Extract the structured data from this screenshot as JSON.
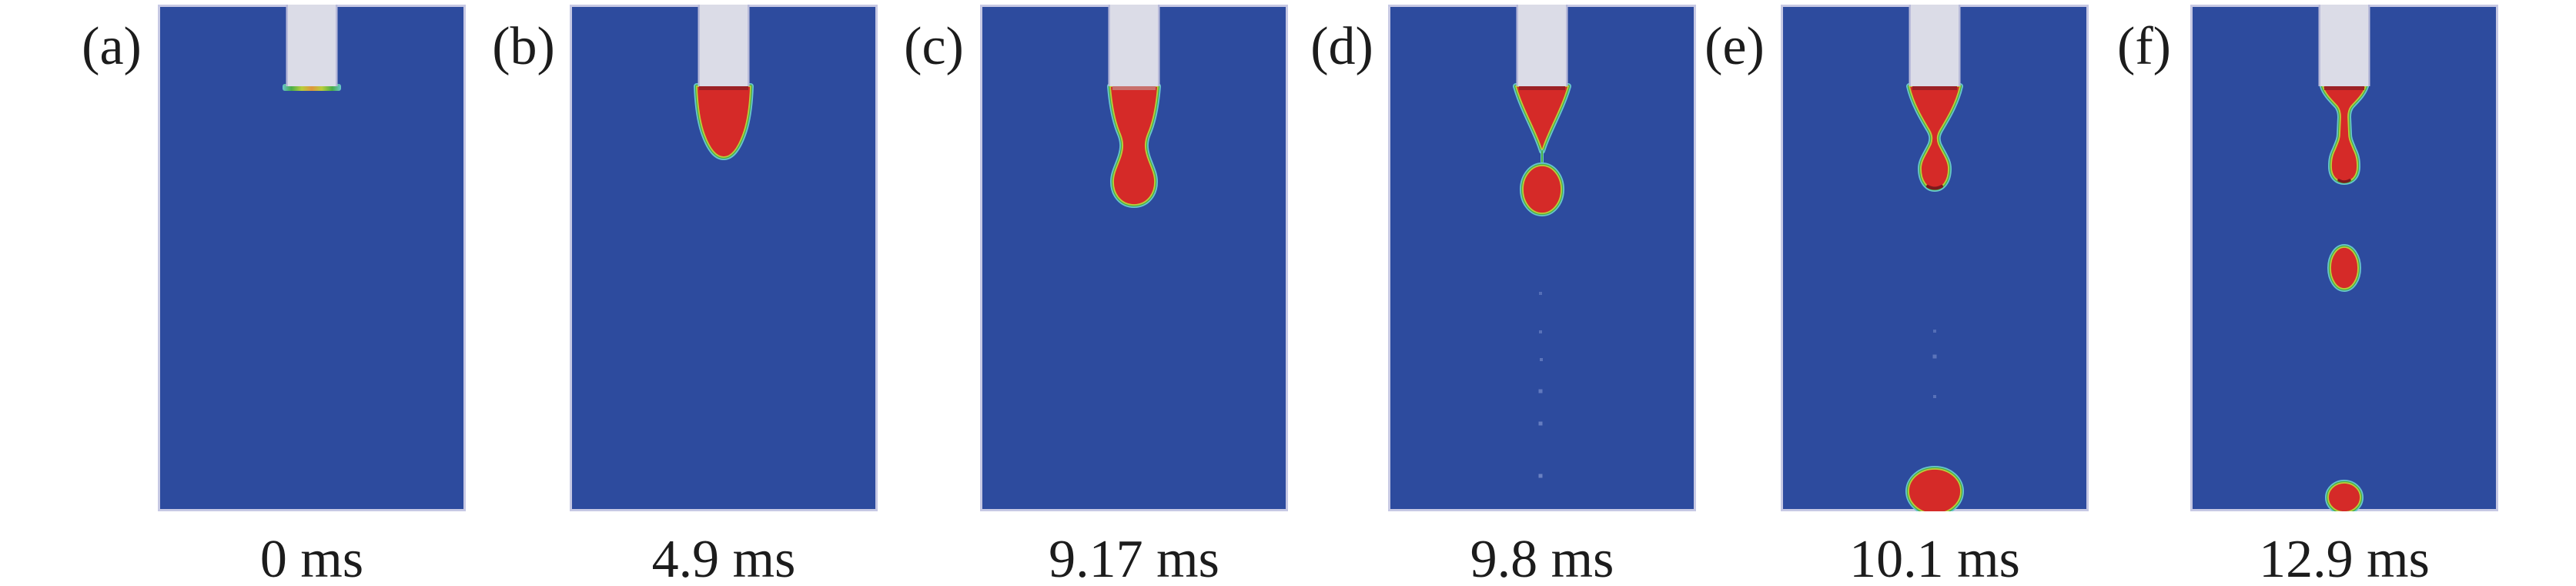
{
  "panels": [
    {
      "label": "(a)",
      "time": "0 ms"
    },
    {
      "label": "(b)",
      "time": "4.9 ms"
    },
    {
      "label": "(c)",
      "time": "9.17 ms"
    },
    {
      "label": "(d)",
      "time": "9.8 ms"
    },
    {
      "label": "(e)",
      "time": "10.1 ms"
    },
    {
      "label": "(f)",
      "time": "12.9 ms"
    }
  ],
  "time_unit": "ms",
  "colors": {
    "background": "#ffffff",
    "ambient_fluid_blue": "#2d4b9e",
    "ink_red": "#d52a28",
    "ink_dark_red": "#9c2125",
    "ink_pink_attach": "#c9706c",
    "interface_cyan": "#68c6cc",
    "interface_green": "#49ae49",
    "interface_yellow": "#b9ce3a",
    "nozzle_gray": "#dbdce7",
    "nozzle_edge": "#b9bbda",
    "panel_border": "#c7c9e4",
    "satellite_dot": "#8498d2",
    "text": "#1c1c1c"
  }
}
